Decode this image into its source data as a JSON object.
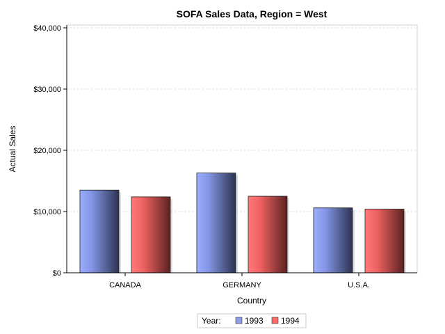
{
  "chart_data": {
    "type": "bar",
    "title": "SOFA Sales Data, Region = West",
    "xlabel": "Country",
    "ylabel": "Actual Sales",
    "categories": [
      "CANADA",
      "GERMANY",
      "U.S.A."
    ],
    "series": [
      {
        "name": "1993",
        "values": [
          13500,
          16300,
          10600
        ],
        "color": "#8d9fe8"
      },
      {
        "name": "1994",
        "values": [
          12400,
          12500,
          10400
        ],
        "color": "#ff6a6a"
      }
    ],
    "ylim": [
      0,
      40000
    ],
    "yticks": [
      0,
      10000,
      20000,
      30000,
      40000
    ],
    "ytick_labels": [
      "$0",
      "$10,000",
      "$20,000",
      "$30,000",
      "$40,000"
    ],
    "grid": true,
    "legend": {
      "title": "Year:",
      "placement": "bottom-center"
    }
  }
}
